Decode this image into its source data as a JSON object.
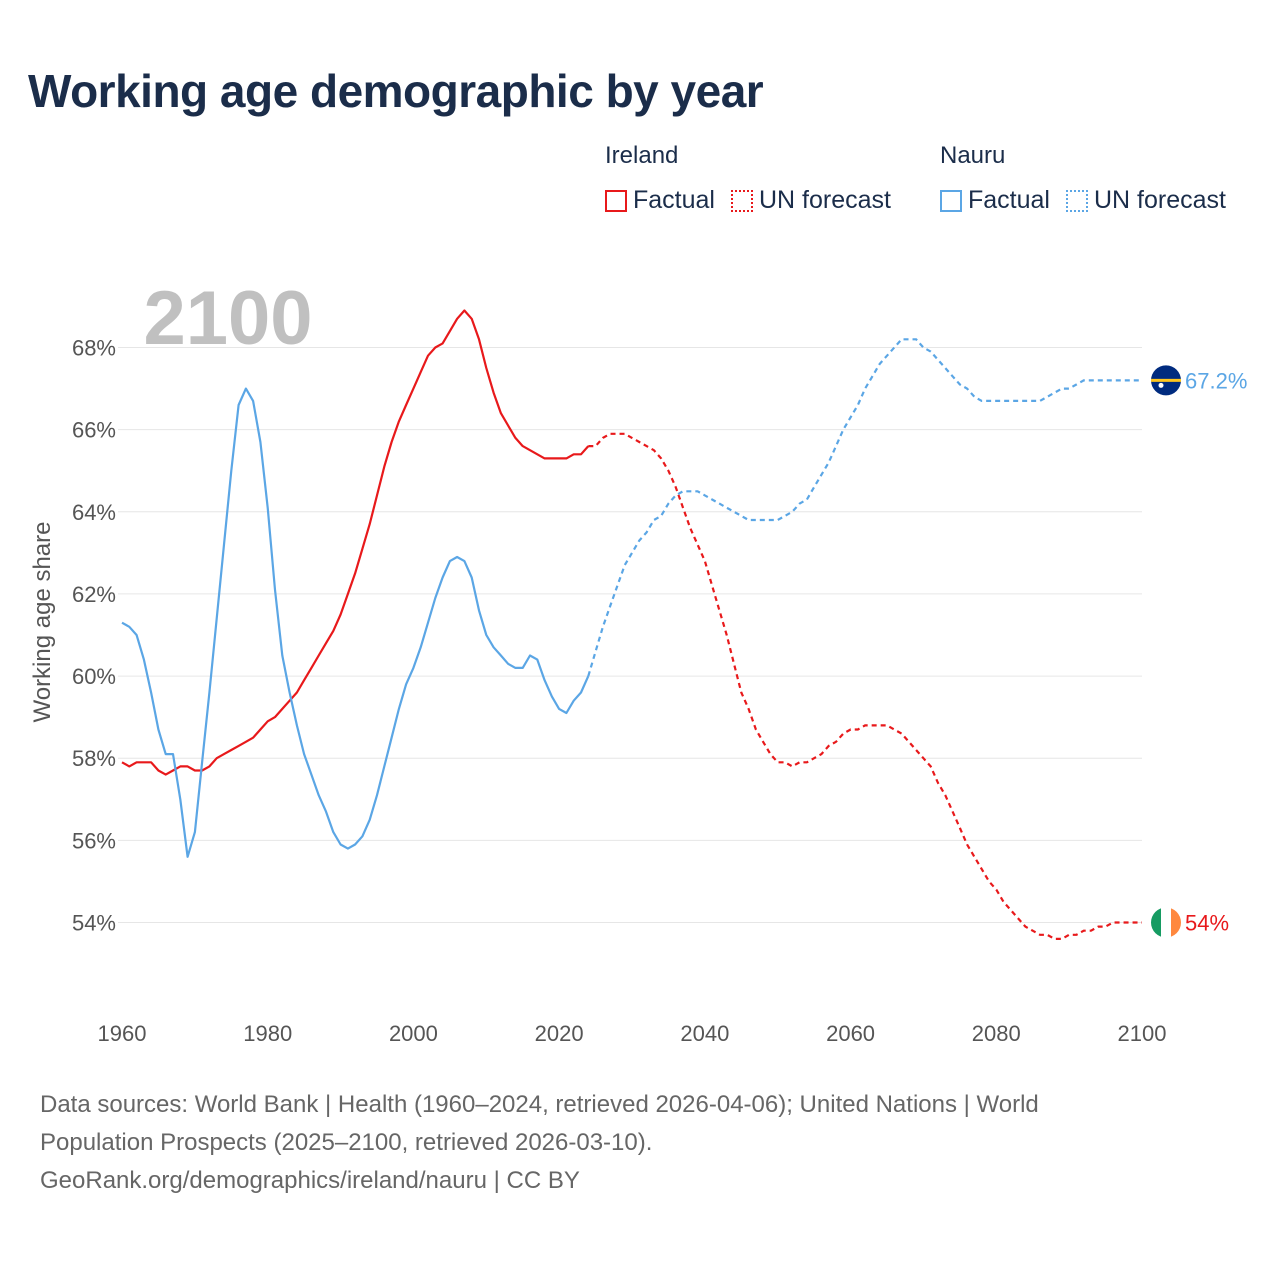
{
  "title": "Working age demographic by year",
  "colors": {
    "ireland": "#e8191b",
    "nauru": "#5ba6e5",
    "title": "#1b2d4a",
    "axis_text": "#555555",
    "grid": "#e6e6e6",
    "year_watermark": "#c0c0c0"
  },
  "legend": {
    "groups": [
      {
        "name": "Ireland",
        "factual_label": "Factual",
        "forecast_label": "UN forecast",
        "color": "#e8191b"
      },
      {
        "name": "Nauru",
        "factual_label": "Factual",
        "forecast_label": "UN forecast",
        "color": "#5ba6e5"
      }
    ]
  },
  "sources": {
    "line1": "Data sources: World Bank | Health (1960–2024, retrieved 2026-04-06); United Nations | World",
    "line2": "Population Prospects (2025–2100, retrieved 2026-03-10).",
    "line3": "GeoRank.org/demographics/ireland/nauru | CC BY"
  },
  "chart_data": {
    "type": "line",
    "title": "Working age demographic by year",
    "xlabel": "",
    "ylabel": "Working age share",
    "year_label": "2100",
    "xlim": [
      1960,
      2100
    ],
    "ylim": [
      52.6,
      69.4
    ],
    "x_ticks": [
      1960,
      1980,
      2000,
      2020,
      2040,
      2060,
      2080,
      2100
    ],
    "y_ticks": [
      54,
      56,
      58,
      60,
      62,
      64,
      66,
      68
    ],
    "y_tick_labels": [
      "54%",
      "56%",
      "58%",
      "60%",
      "62%",
      "64%",
      "66%",
      "68%"
    ],
    "grid": true,
    "factual_end_year": 2024,
    "series": [
      {
        "name": "Ireland",
        "color": "#e8191b",
        "end_label": "54%",
        "flag_icon": "ireland-flag-icon",
        "points": [
          [
            1960,
            57.9
          ],
          [
            1961,
            57.8
          ],
          [
            1962,
            57.9
          ],
          [
            1963,
            57.9
          ],
          [
            1964,
            57.9
          ],
          [
            1965,
            57.7
          ],
          [
            1966,
            57.6
          ],
          [
            1967,
            57.7
          ],
          [
            1968,
            57.8
          ],
          [
            1969,
            57.8
          ],
          [
            1970,
            57.7
          ],
          [
            1971,
            57.7
          ],
          [
            1972,
            57.8
          ],
          [
            1973,
            58.0
          ],
          [
            1974,
            58.1
          ],
          [
            1975,
            58.2
          ],
          [
            1976,
            58.3
          ],
          [
            1977,
            58.4
          ],
          [
            1978,
            58.5
          ],
          [
            1979,
            58.7
          ],
          [
            1980,
            58.9
          ],
          [
            1981,
            59.0
          ],
          [
            1982,
            59.2
          ],
          [
            1983,
            59.4
          ],
          [
            1984,
            59.6
          ],
          [
            1985,
            59.9
          ],
          [
            1986,
            60.2
          ],
          [
            1987,
            60.5
          ],
          [
            1988,
            60.8
          ],
          [
            1989,
            61.1
          ],
          [
            1990,
            61.5
          ],
          [
            1991,
            62.0
          ],
          [
            1992,
            62.5
          ],
          [
            1993,
            63.1
          ],
          [
            1994,
            63.7
          ],
          [
            1995,
            64.4
          ],
          [
            1996,
            65.1
          ],
          [
            1997,
            65.7
          ],
          [
            1998,
            66.2
          ],
          [
            1999,
            66.6
          ],
          [
            2000,
            67.0
          ],
          [
            2001,
            67.4
          ],
          [
            2002,
            67.8
          ],
          [
            2003,
            68.0
          ],
          [
            2004,
            68.1
          ],
          [
            2005,
            68.4
          ],
          [
            2006,
            68.7
          ],
          [
            2007,
            68.9
          ],
          [
            2008,
            68.7
          ],
          [
            2009,
            68.2
          ],
          [
            2010,
            67.5
          ],
          [
            2011,
            66.9
          ],
          [
            2012,
            66.4
          ],
          [
            2013,
            66.1
          ],
          [
            2014,
            65.8
          ],
          [
            2015,
            65.6
          ],
          [
            2016,
            65.5
          ],
          [
            2017,
            65.4
          ],
          [
            2018,
            65.3
          ],
          [
            2019,
            65.3
          ],
          [
            2020,
            65.3
          ],
          [
            2021,
            65.3
          ],
          [
            2022,
            65.4
          ],
          [
            2023,
            65.4
          ],
          [
            2024,
            65.6
          ],
          [
            2025,
            65.6
          ],
          [
            2026,
            65.8
          ],
          [
            2027,
            65.9
          ],
          [
            2028,
            65.9
          ],
          [
            2029,
            65.9
          ],
          [
            2030,
            65.8
          ],
          [
            2031,
            65.7
          ],
          [
            2032,
            65.6
          ],
          [
            2033,
            65.5
          ],
          [
            2034,
            65.3
          ],
          [
            2035,
            65.0
          ],
          [
            2036,
            64.6
          ],
          [
            2037,
            64.1
          ],
          [
            2038,
            63.6
          ],
          [
            2039,
            63.2
          ],
          [
            2040,
            62.8
          ],
          [
            2041,
            62.2
          ],
          [
            2042,
            61.6
          ],
          [
            2043,
            61.0
          ],
          [
            2044,
            60.3
          ],
          [
            2045,
            59.6
          ],
          [
            2046,
            59.2
          ],
          [
            2047,
            58.7
          ],
          [
            2048,
            58.4
          ],
          [
            2049,
            58.1
          ],
          [
            2050,
            57.9
          ],
          [
            2051,
            57.9
          ],
          [
            2052,
            57.8
          ],
          [
            2053,
            57.9
          ],
          [
            2054,
            57.9
          ],
          [
            2055,
            58.0
          ],
          [
            2056,
            58.1
          ],
          [
            2057,
            58.3
          ],
          [
            2058,
            58.4
          ],
          [
            2059,
            58.6
          ],
          [
            2060,
            58.7
          ],
          [
            2061,
            58.7
          ],
          [
            2062,
            58.8
          ],
          [
            2063,
            58.8
          ],
          [
            2064,
            58.8
          ],
          [
            2065,
            58.8
          ],
          [
            2066,
            58.7
          ],
          [
            2067,
            58.6
          ],
          [
            2068,
            58.4
          ],
          [
            2069,
            58.2
          ],
          [
            2070,
            58.0
          ],
          [
            2071,
            57.8
          ],
          [
            2072,
            57.4
          ],
          [
            2073,
            57.1
          ],
          [
            2074,
            56.7
          ],
          [
            2075,
            56.3
          ],
          [
            2076,
            55.9
          ],
          [
            2077,
            55.6
          ],
          [
            2078,
            55.3
          ],
          [
            2079,
            55.0
          ],
          [
            2080,
            54.8
          ],
          [
            2081,
            54.5
          ],
          [
            2082,
            54.3
          ],
          [
            2083,
            54.1
          ],
          [
            2084,
            53.9
          ],
          [
            2085,
            53.8
          ],
          [
            2086,
            53.7
          ],
          [
            2087,
            53.7
          ],
          [
            2088,
            53.6
          ],
          [
            2089,
            53.6
          ],
          [
            2090,
            53.7
          ],
          [
            2091,
            53.7
          ],
          [
            2092,
            53.8
          ],
          [
            2093,
            53.8
          ],
          [
            2094,
            53.9
          ],
          [
            2095,
            53.9
          ],
          [
            2096,
            54.0
          ],
          [
            2097,
            54.0
          ],
          [
            2098,
            54.0
          ],
          [
            2099,
            54.0
          ],
          [
            2100,
            54.0
          ]
        ]
      },
      {
        "name": "Nauru",
        "color": "#5ba6e5",
        "end_label": "67.2%",
        "flag_icon": "nauru-flag-icon",
        "points": [
          [
            1960,
            61.3
          ],
          [
            1961,
            61.2
          ],
          [
            1962,
            61.0
          ],
          [
            1963,
            60.4
          ],
          [
            1964,
            59.6
          ],
          [
            1965,
            58.7
          ],
          [
            1966,
            58.1
          ],
          [
            1967,
            58.1
          ],
          [
            1968,
            57.0
          ],
          [
            1969,
            55.6
          ],
          [
            1970,
            56.2
          ],
          [
            1971,
            57.9
          ],
          [
            1972,
            59.6
          ],
          [
            1973,
            61.4
          ],
          [
            1974,
            63.2
          ],
          [
            1975,
            65.0
          ],
          [
            1976,
            66.6
          ],
          [
            1977,
            67.0
          ],
          [
            1978,
            66.7
          ],
          [
            1979,
            65.7
          ],
          [
            1980,
            64.1
          ],
          [
            1981,
            62.1
          ],
          [
            1982,
            60.5
          ],
          [
            1983,
            59.6
          ],
          [
            1984,
            58.8
          ],
          [
            1985,
            58.1
          ],
          [
            1986,
            57.6
          ],
          [
            1987,
            57.1
          ],
          [
            1988,
            56.7
          ],
          [
            1989,
            56.2
          ],
          [
            1990,
            55.9
          ],
          [
            1991,
            55.8
          ],
          [
            1992,
            55.9
          ],
          [
            1993,
            56.1
          ],
          [
            1994,
            56.5
          ],
          [
            1995,
            57.1
          ],
          [
            1996,
            57.8
          ],
          [
            1997,
            58.5
          ],
          [
            1998,
            59.2
          ],
          [
            1999,
            59.8
          ],
          [
            2000,
            60.2
          ],
          [
            2001,
            60.7
          ],
          [
            2002,
            61.3
          ],
          [
            2003,
            61.9
          ],
          [
            2004,
            62.4
          ],
          [
            2005,
            62.8
          ],
          [
            2006,
            62.9
          ],
          [
            2007,
            62.8
          ],
          [
            2008,
            62.4
          ],
          [
            2009,
            61.6
          ],
          [
            2010,
            61.0
          ],
          [
            2011,
            60.7
          ],
          [
            2012,
            60.5
          ],
          [
            2013,
            60.3
          ],
          [
            2014,
            60.2
          ],
          [
            2015,
            60.2
          ],
          [
            2016,
            60.5
          ],
          [
            2017,
            60.4
          ],
          [
            2018,
            59.9
          ],
          [
            2019,
            59.5
          ],
          [
            2020,
            59.2
          ],
          [
            2021,
            59.1
          ],
          [
            2022,
            59.4
          ],
          [
            2023,
            59.6
          ],
          [
            2024,
            60.0
          ],
          [
            2025,
            60.6
          ],
          [
            2026,
            61.2
          ],
          [
            2027,
            61.7
          ],
          [
            2028,
            62.2
          ],
          [
            2029,
            62.7
          ],
          [
            2030,
            63.0
          ],
          [
            2031,
            63.3
          ],
          [
            2032,
            63.5
          ],
          [
            2033,
            63.8
          ],
          [
            2034,
            63.9
          ],
          [
            2035,
            64.2
          ],
          [
            2036,
            64.4
          ],
          [
            2037,
            64.5
          ],
          [
            2038,
            64.5
          ],
          [
            2039,
            64.5
          ],
          [
            2040,
            64.4
          ],
          [
            2041,
            64.3
          ],
          [
            2042,
            64.2
          ],
          [
            2043,
            64.1
          ],
          [
            2044,
            64.0
          ],
          [
            2045,
            63.9
          ],
          [
            2046,
            63.8
          ],
          [
            2047,
            63.8
          ],
          [
            2048,
            63.8
          ],
          [
            2049,
            63.8
          ],
          [
            2050,
            63.8
          ],
          [
            2051,
            63.9
          ],
          [
            2052,
            64.0
          ],
          [
            2053,
            64.2
          ],
          [
            2054,
            64.3
          ],
          [
            2055,
            64.6
          ],
          [
            2056,
            64.9
          ],
          [
            2057,
            65.2
          ],
          [
            2058,
            65.6
          ],
          [
            2059,
            66.0
          ],
          [
            2060,
            66.3
          ],
          [
            2061,
            66.6
          ],
          [
            2062,
            67.0
          ],
          [
            2063,
            67.3
          ],
          [
            2064,
            67.6
          ],
          [
            2065,
            67.8
          ],
          [
            2066,
            68.0
          ],
          [
            2067,
            68.2
          ],
          [
            2068,
            68.2
          ],
          [
            2069,
            68.2
          ],
          [
            2070,
            68.0
          ],
          [
            2071,
            67.9
          ],
          [
            2072,
            67.7
          ],
          [
            2073,
            67.5
          ],
          [
            2074,
            67.3
          ],
          [
            2075,
            67.1
          ],
          [
            2076,
            67.0
          ],
          [
            2077,
            66.8
          ],
          [
            2078,
            66.7
          ],
          [
            2079,
            66.7
          ],
          [
            2080,
            66.7
          ],
          [
            2081,
            66.7
          ],
          [
            2082,
            66.7
          ],
          [
            2083,
            66.7
          ],
          [
            2084,
            66.7
          ],
          [
            2085,
            66.7
          ],
          [
            2086,
            66.7
          ],
          [
            2087,
            66.8
          ],
          [
            2088,
            66.9
          ],
          [
            2089,
            67.0
          ],
          [
            2090,
            67.0
          ],
          [
            2091,
            67.1
          ],
          [
            2092,
            67.2
          ],
          [
            2093,
            67.2
          ],
          [
            2094,
            67.2
          ],
          [
            2095,
            67.2
          ],
          [
            2096,
            67.2
          ],
          [
            2097,
            67.2
          ],
          [
            2098,
            67.2
          ],
          [
            2099,
            67.2
          ],
          [
            2100,
            67.2
          ]
        ]
      }
    ]
  }
}
